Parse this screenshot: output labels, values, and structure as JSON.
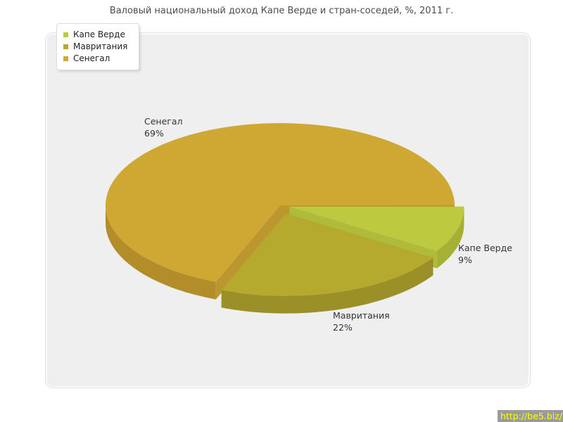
{
  "page_title": "Валовый национальный доход Капе Верде и стран-соседей, %, 2011 г.",
  "watermark": {
    "text": "http://be5.biz/",
    "bg": "#9b9b9b",
    "color": "#ffff00"
  },
  "chart_data": {
    "type": "pie",
    "title": "Валовый национальный доход Капе Верде и стран-соседей, %, 2011 г.",
    "unit": "%",
    "style": "3d-exploded",
    "legend_position": "top-left",
    "panel_bg": "#efeff0",
    "slices": [
      {
        "label": "Капе Верде",
        "value": 9,
        "pct_label": "9%",
        "color": "#bdc93f",
        "side_color": "#a5b134",
        "edge_color": "#afbb3a"
      },
      {
        "label": "Мавритания",
        "value": 22,
        "pct_label": "22%",
        "color": "#b5a92e",
        "side_color": "#9a9027",
        "edge_color": "#a89d2b"
      },
      {
        "label": "Сенегал",
        "value": 69,
        "pct_label": "69%",
        "color": "#cfa733",
        "side_color": "#b28d2a",
        "edge_color": "#bc962e"
      }
    ]
  }
}
